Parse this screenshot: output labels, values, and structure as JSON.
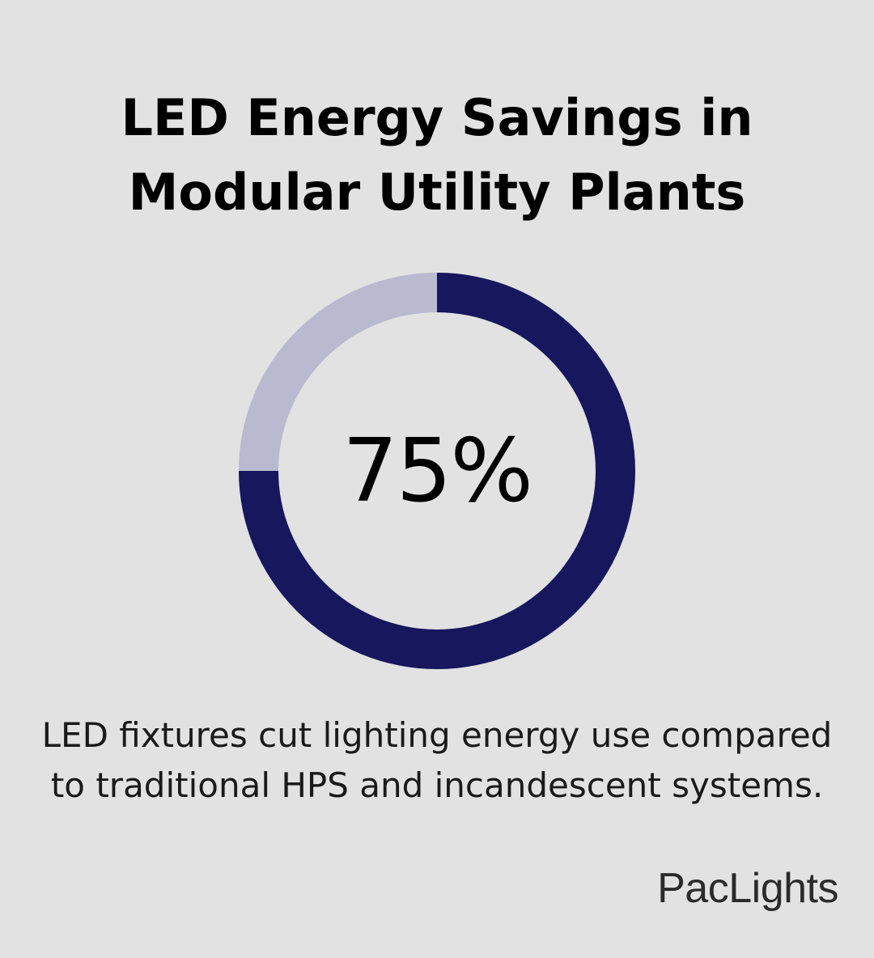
{
  "title": {
    "line1": "LED Energy Savings in",
    "line2": "Modular Utility Plants"
  },
  "caption": {
    "line1": "LED fixtures cut lighting energy use compared",
    "line2": "to traditional HPS and incandescent systems."
  },
  "brand": "PacLights",
  "colors": {
    "background": "#e1e2e1",
    "primary": "#17175e",
    "remainder": "#b9bad0"
  },
  "chart_data": {
    "type": "pie",
    "categories": [
      "",
      ""
    ],
    "values": [
      75,
      25
    ],
    "center_label": "75%"
  }
}
